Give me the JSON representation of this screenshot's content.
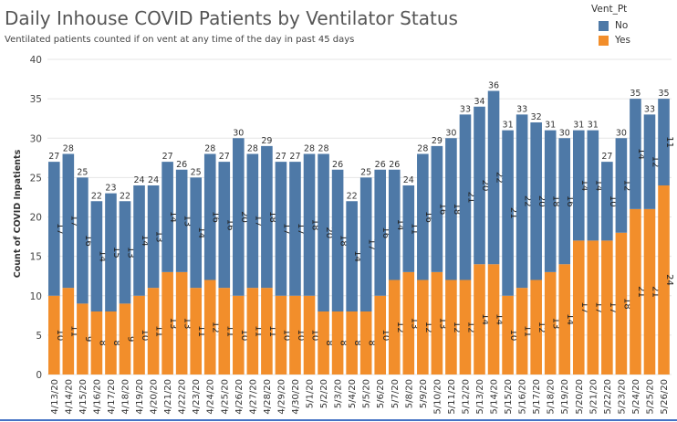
{
  "header": {
    "title": "Daily Inhouse COVID Patients by Ventilator Status",
    "subtitle": "Ventilated patients counted if on vent at any time of the day in past 45 days"
  },
  "legend": {
    "title": "Vent_Pt",
    "items": [
      {
        "label": "No",
        "color": "#4e79a7"
      },
      {
        "label": "Yes",
        "color": "#f28e2b"
      }
    ]
  },
  "chart_data": {
    "type": "bar",
    "stacked": true,
    "title": "Daily Inhouse COVID Patients by Ventilator Status",
    "subtitle": "Ventilated patients counted if on vent at any time of the day in past 45 days",
    "ylabel": "Count of COVID Inpatients",
    "xlabel": "",
    "ylim": [
      0,
      40
    ],
    "yticks": [
      0,
      5,
      10,
      15,
      20,
      25,
      30,
      35,
      40
    ],
    "grid": true,
    "legend_position": "top-right",
    "categories": [
      "4/13/20",
      "4/14/20",
      "4/15/20",
      "4/16/20",
      "4/17/20",
      "4/18/20",
      "4/19/20",
      "4/20/20",
      "4/21/20",
      "4/22/20",
      "4/23/20",
      "4/24/20",
      "4/25/20",
      "4/26/20",
      "4/27/20",
      "4/28/20",
      "4/29/20",
      "4/30/20",
      "5/1/20",
      "5/2/20",
      "5/3/20",
      "5/4/20",
      "5/5/20",
      "5/6/20",
      "5/7/20",
      "5/8/20",
      "5/9/20",
      "5/10/20",
      "5/11/20",
      "5/12/20",
      "5/13/20",
      "5/14/20",
      "5/15/20",
      "5/16/20",
      "5/17/20",
      "5/18/20",
      "5/19/20",
      "5/20/20",
      "5/21/20",
      "5/22/20",
      "5/23/20",
      "5/24/20",
      "5/25/20",
      "5/26/20"
    ],
    "series": [
      {
        "name": "Yes",
        "color": "#f28e2b",
        "values": [
          10,
          11,
          9,
          8,
          8,
          9,
          10,
          11,
          13,
          13,
          11,
          12,
          11,
          10,
          11,
          11,
          10,
          10,
          10,
          8,
          8,
          8,
          8,
          10,
          12,
          13,
          12,
          13,
          12,
          12,
          14,
          14,
          10,
          11,
          12,
          13,
          14,
          17,
          17,
          17,
          18,
          21,
          21,
          24
        ]
      },
      {
        "name": "No",
        "color": "#4e79a7",
        "values": [
          17,
          17,
          16,
          14,
          15,
          13,
          14,
          13,
          14,
          13,
          14,
          16,
          16,
          20,
          17,
          18,
          17,
          17,
          18,
          20,
          18,
          14,
          17,
          16,
          14,
          11,
          16,
          16,
          18,
          21,
          20,
          22,
          21,
          22,
          20,
          18,
          16,
          14,
          14,
          10,
          12,
          14,
          12,
          11
        ]
      }
    ],
    "totals": [
      27,
      28,
      25,
      22,
      23,
      22,
      24,
      24,
      27,
      26,
      25,
      28,
      27,
      30,
      28,
      29,
      27,
      27,
      28,
      28,
      26,
      22,
      25,
      26,
      26,
      24,
      28,
      29,
      30,
      33,
      34,
      36,
      31,
      33,
      32,
      31,
      30,
      31,
      31,
      27,
      30,
      35,
      33,
      35
    ]
  }
}
